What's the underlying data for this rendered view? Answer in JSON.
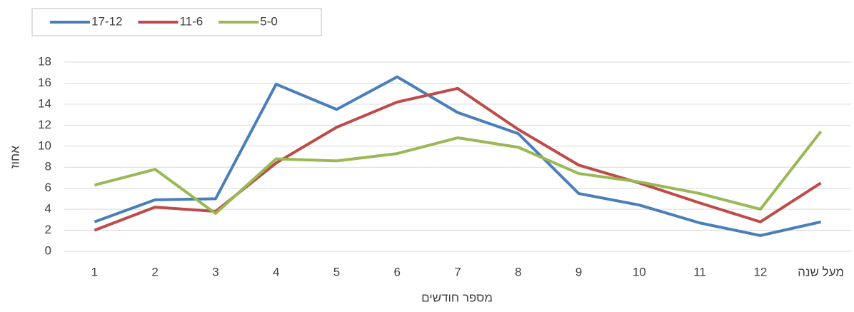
{
  "chart_data": {
    "type": "line",
    "x_label": "מספר חודשים",
    "y_label": "אחוז",
    "categories": [
      "1",
      "2",
      "3",
      "4",
      "5",
      "6",
      "7",
      "8",
      "9",
      "10",
      "11",
      "12",
      "מעל שנה"
    ],
    "series": [
      {
        "name": "17-12",
        "color": "#4a7ebb",
        "values": [
          2.8,
          4.9,
          5.0,
          15.9,
          13.5,
          16.6,
          13.2,
          11.2,
          5.5,
          4.4,
          2.7,
          1.5,
          2.8
        ]
      },
      {
        "name": "11-6",
        "color": "#be4b48",
        "values": [
          2.0,
          4.2,
          3.8,
          8.4,
          11.8,
          14.2,
          15.5,
          11.6,
          8.2,
          6.5,
          4.6,
          2.8,
          6.5
        ]
      },
      {
        "name": "5-0",
        "color": "#98b954",
        "values": [
          6.3,
          7.8,
          3.6,
          8.8,
          8.6,
          9.3,
          10.8,
          9.9,
          7.4,
          6.6,
          5.5,
          4.0,
          11.4
        ]
      }
    ],
    "ylim": [
      0,
      18
    ],
    "yticks": [
      0,
      2,
      4,
      6,
      8,
      10,
      12,
      14,
      16,
      18
    ],
    "grid": true,
    "legend": "top-left"
  }
}
